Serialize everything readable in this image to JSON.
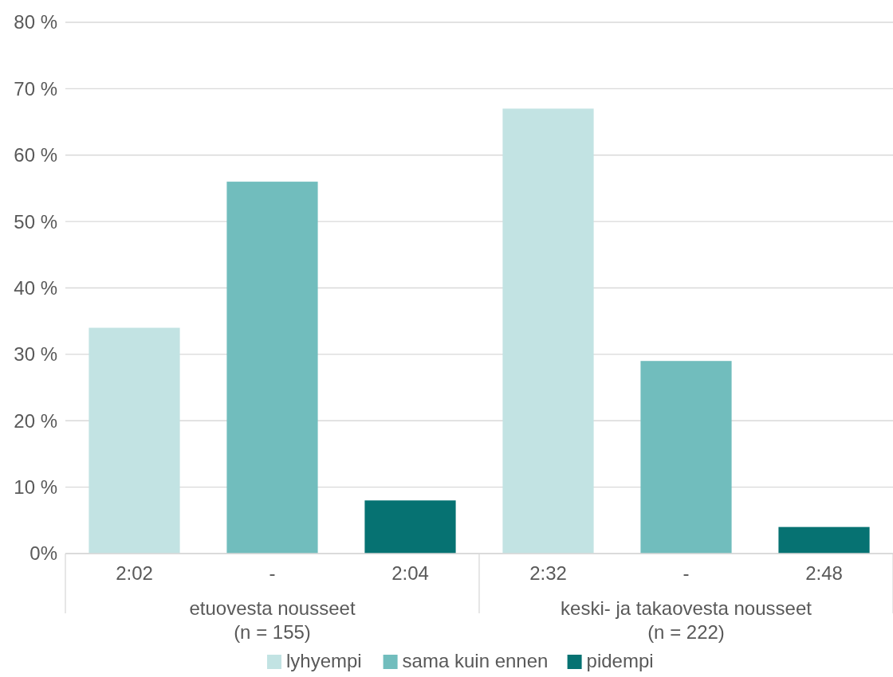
{
  "chart_data": {
    "type": "bar",
    "categories": [
      "2:02",
      "-",
      "2:04",
      "2:32",
      "-",
      "2:48"
    ],
    "series": [
      {
        "name": "lyhyempi",
        "color": "#c2e3e3",
        "values": [
          34,
          null,
          null,
          67,
          null,
          null
        ]
      },
      {
        "name": "sama kuin ennen",
        "color": "#71bdbd",
        "values": [
          null,
          56,
          null,
          null,
          29,
          null
        ]
      },
      {
        "name": "pidempi",
        "color": "#067272",
        "values": [
          null,
          null,
          8,
          null,
          null,
          4
        ]
      }
    ],
    "annotations": [
      "etuovesta nousseet\n(n = 155)",
      "keski- ja takaovesta nousseet\n(n = 222)"
    ],
    "ylim": [
      0,
      80
    ],
    "yticks": [
      {
        "value": 0,
        "label": "0%"
      },
      {
        "value": 10,
        "label": "10 %"
      },
      {
        "value": 20,
        "label": "20 %"
      },
      {
        "value": 30,
        "label": "30 %"
      },
      {
        "value": 40,
        "label": "40 %"
      },
      {
        "value": 50,
        "label": "50 %"
      },
      {
        "value": 60,
        "label": "60 %"
      },
      {
        "value": 70,
        "label": "70 %"
      },
      {
        "value": 80,
        "label": "80 %"
      }
    ],
    "grid": "y",
    "legend": "bottom"
  }
}
